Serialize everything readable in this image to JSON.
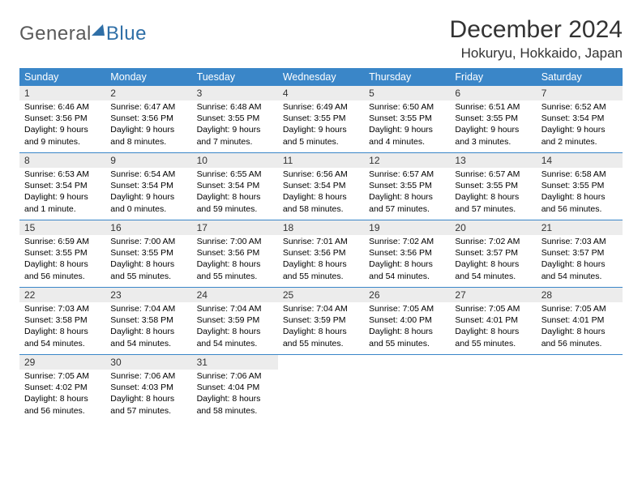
{
  "brand": {
    "part1": "General",
    "part2": "Blue"
  },
  "title": "December 2024",
  "location": "Hokuryu, Hokkaido, Japan",
  "colors": {
    "header_bg": "#3a86c8",
    "header_text": "#ffffff",
    "daynum_bg": "#ececec",
    "rule": "#3a86c8",
    "logo_gray": "#5a5a5a",
    "logo_blue": "#2f6fa7"
  },
  "typography": {
    "title_fontsize": 30,
    "location_fontsize": 17,
    "dayhead_fontsize": 12.5,
    "daynum_fontsize": 12,
    "body_fontsize": 10.5
  },
  "day_headers": [
    "Sunday",
    "Monday",
    "Tuesday",
    "Wednesday",
    "Thursday",
    "Friday",
    "Saturday"
  ],
  "weeks": [
    [
      {
        "n": "1",
        "sr": "6:46 AM",
        "ss": "3:56 PM",
        "dl": "9 hours and 9 minutes."
      },
      {
        "n": "2",
        "sr": "6:47 AM",
        "ss": "3:56 PM",
        "dl": "9 hours and 8 minutes."
      },
      {
        "n": "3",
        "sr": "6:48 AM",
        "ss": "3:55 PM",
        "dl": "9 hours and 7 minutes."
      },
      {
        "n": "4",
        "sr": "6:49 AM",
        "ss": "3:55 PM",
        "dl": "9 hours and 5 minutes."
      },
      {
        "n": "5",
        "sr": "6:50 AM",
        "ss": "3:55 PM",
        "dl": "9 hours and 4 minutes."
      },
      {
        "n": "6",
        "sr": "6:51 AM",
        "ss": "3:55 PM",
        "dl": "9 hours and 3 minutes."
      },
      {
        "n": "7",
        "sr": "6:52 AM",
        "ss": "3:54 PM",
        "dl": "9 hours and 2 minutes."
      }
    ],
    [
      {
        "n": "8",
        "sr": "6:53 AM",
        "ss": "3:54 PM",
        "dl": "9 hours and 1 minute."
      },
      {
        "n": "9",
        "sr": "6:54 AM",
        "ss": "3:54 PM",
        "dl": "9 hours and 0 minutes."
      },
      {
        "n": "10",
        "sr": "6:55 AM",
        "ss": "3:54 PM",
        "dl": "8 hours and 59 minutes."
      },
      {
        "n": "11",
        "sr": "6:56 AM",
        "ss": "3:54 PM",
        "dl": "8 hours and 58 minutes."
      },
      {
        "n": "12",
        "sr": "6:57 AM",
        "ss": "3:55 PM",
        "dl": "8 hours and 57 minutes."
      },
      {
        "n": "13",
        "sr": "6:57 AM",
        "ss": "3:55 PM",
        "dl": "8 hours and 57 minutes."
      },
      {
        "n": "14",
        "sr": "6:58 AM",
        "ss": "3:55 PM",
        "dl": "8 hours and 56 minutes."
      }
    ],
    [
      {
        "n": "15",
        "sr": "6:59 AM",
        "ss": "3:55 PM",
        "dl": "8 hours and 56 minutes."
      },
      {
        "n": "16",
        "sr": "7:00 AM",
        "ss": "3:55 PM",
        "dl": "8 hours and 55 minutes."
      },
      {
        "n": "17",
        "sr": "7:00 AM",
        "ss": "3:56 PM",
        "dl": "8 hours and 55 minutes."
      },
      {
        "n": "18",
        "sr": "7:01 AM",
        "ss": "3:56 PM",
        "dl": "8 hours and 55 minutes."
      },
      {
        "n": "19",
        "sr": "7:02 AM",
        "ss": "3:56 PM",
        "dl": "8 hours and 54 minutes."
      },
      {
        "n": "20",
        "sr": "7:02 AM",
        "ss": "3:57 PM",
        "dl": "8 hours and 54 minutes."
      },
      {
        "n": "21",
        "sr": "7:03 AM",
        "ss": "3:57 PM",
        "dl": "8 hours and 54 minutes."
      }
    ],
    [
      {
        "n": "22",
        "sr": "7:03 AM",
        "ss": "3:58 PM",
        "dl": "8 hours and 54 minutes."
      },
      {
        "n": "23",
        "sr": "7:04 AM",
        "ss": "3:58 PM",
        "dl": "8 hours and 54 minutes."
      },
      {
        "n": "24",
        "sr": "7:04 AM",
        "ss": "3:59 PM",
        "dl": "8 hours and 54 minutes."
      },
      {
        "n": "25",
        "sr": "7:04 AM",
        "ss": "3:59 PM",
        "dl": "8 hours and 55 minutes."
      },
      {
        "n": "26",
        "sr": "7:05 AM",
        "ss": "4:00 PM",
        "dl": "8 hours and 55 minutes."
      },
      {
        "n": "27",
        "sr": "7:05 AM",
        "ss": "4:01 PM",
        "dl": "8 hours and 55 minutes."
      },
      {
        "n": "28",
        "sr": "7:05 AM",
        "ss": "4:01 PM",
        "dl": "8 hours and 56 minutes."
      }
    ],
    [
      {
        "n": "29",
        "sr": "7:05 AM",
        "ss": "4:02 PM",
        "dl": "8 hours and 56 minutes."
      },
      {
        "n": "30",
        "sr": "7:06 AM",
        "ss": "4:03 PM",
        "dl": "8 hours and 57 minutes."
      },
      {
        "n": "31",
        "sr": "7:06 AM",
        "ss": "4:04 PM",
        "dl": "8 hours and 58 minutes."
      },
      null,
      null,
      null,
      null
    ]
  ],
  "labels": {
    "sunrise": "Sunrise:",
    "sunset": "Sunset:",
    "daylight": "Daylight:"
  }
}
